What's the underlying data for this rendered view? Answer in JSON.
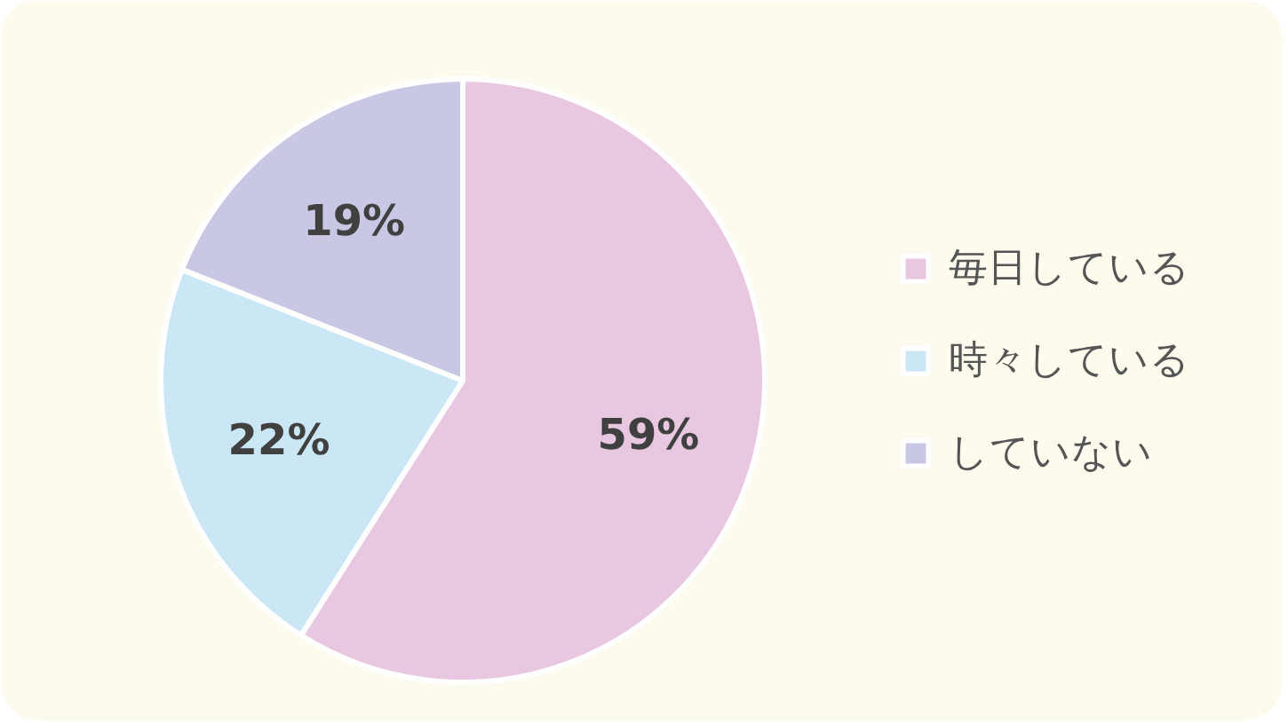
{
  "chart_data": {
    "type": "pie",
    "categories": [
      "毎日している",
      "時々している",
      "していない"
    ],
    "values": [
      59,
      22,
      19
    ],
    "colors": [
      "#e8c8e0",
      "#cbe7f6",
      "#c8c8e4"
    ],
    "value_labels": [
      "59%",
      "22%",
      "19%"
    ],
    "legend": "right"
  }
}
